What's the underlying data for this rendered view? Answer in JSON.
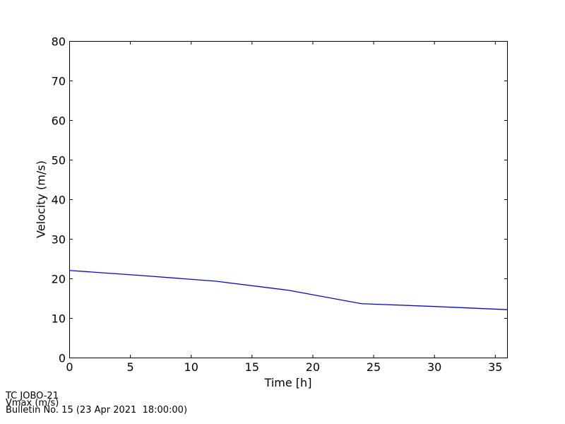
{
  "chart_data": {
    "type": "line",
    "title": "",
    "xlabel": "Time [h]",
    "ylabel": "Velocity (m/s)",
    "x": [
      0,
      6,
      12,
      18,
      24,
      30,
      36
    ],
    "series": [
      {
        "name": "Vmax (m/s)",
        "values": [
          22.1,
          20.8,
          19.4,
          17.1,
          13.7,
          13.0,
          12.2
        ],
        "color": "#0000ff"
      }
    ],
    "xlim": [
      0,
      36
    ],
    "ylim": [
      0,
      80
    ],
    "xticks": [
      0,
      5,
      10,
      15,
      20,
      25,
      30,
      35
    ],
    "yticks": [
      0,
      10,
      20,
      30,
      40,
      50,
      60,
      70,
      80
    ],
    "grid": false,
    "legend": "none",
    "tick_direction": "in",
    "frame": true
  },
  "annotations": {
    "storm_name": "TC JOBO-21",
    "variable": "Vmax (m/s)",
    "bulletin": "Bulletin No. 15 (23 Apr 2021  18:00:00)"
  },
  "colors": {
    "line": "#0000ff",
    "axis": "#000000",
    "background": "#ffffff"
  }
}
